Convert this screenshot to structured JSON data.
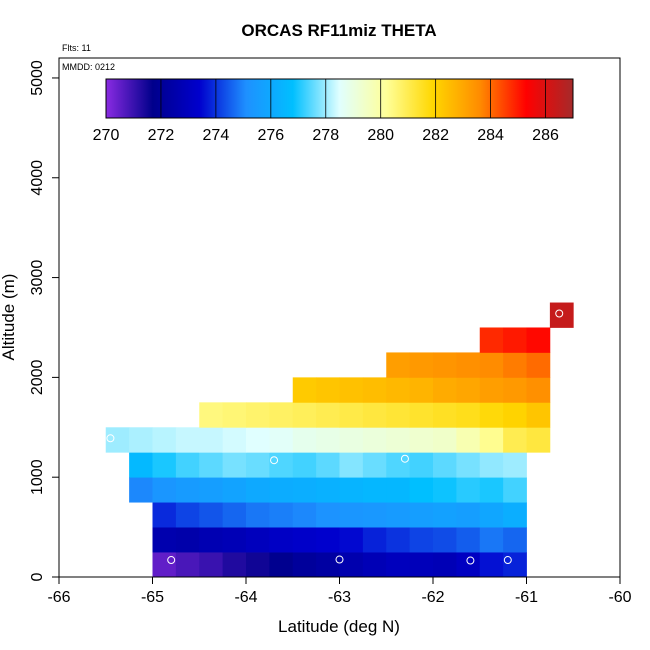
{
  "chart_data": {
    "type": "heatmap",
    "title": "ORCAS RF11miz THETA",
    "xlabel": "Latitude (deg N)",
    "ylabel": "Altitude (m)",
    "xlim": [
      -66,
      -60
    ],
    "ylim": [
      0,
      5200
    ],
    "x_ticks": [
      -66,
      -65,
      -64,
      -63,
      -62,
      -61,
      -60
    ],
    "x_tick_labels": [
      "-66",
      "-65",
      "-64",
      "-63",
      "-62",
      "-61",
      "-60"
    ],
    "y_ticks": [
      0,
      1000,
      2000,
      3000,
      4000,
      5000
    ],
    "y_tick_labels": [
      "0",
      "1000",
      "2000",
      "3000",
      "4000",
      "5000"
    ],
    "annotations": [
      "Flts: 11",
      "MMDD: 0212"
    ],
    "cell_width_deg": 0.25,
    "cell_height_m": 250,
    "colorbar": {
      "min": 270,
      "max": 287,
      "ticks": [
        270,
        272,
        274,
        276,
        278,
        280,
        282,
        284,
        286
      ],
      "tick_labels": [
        "270",
        "272",
        "274",
        "276",
        "278",
        "280",
        "282",
        "284",
        "286"
      ]
    },
    "colormap": [
      "#8a2be2",
      "#00008b",
      "#0000cd",
      "#1e90ff",
      "#00bfff",
      "#e0ffff",
      "#ffff99",
      "#ffd700",
      "#ff8c00",
      "#ff0000",
      "#a52a2a"
    ],
    "rows": [
      {
        "alt": 125,
        "lat_start": -65.0,
        "values": [
          270.5,
          270.8,
          271.0,
          271.3,
          271.5,
          271.8,
          272.1,
          272.3,
          272.6,
          272.8,
          273.0,
          272.9,
          272.8,
          273.1,
          273.6,
          273.8
        ]
      },
      {
        "alt": 375,
        "lat_start": -65.0,
        "values": [
          272.6,
          272.5,
          272.7,
          272.8,
          273.0,
          273.2,
          273.3,
          273.4,
          273.5,
          273.8,
          274.0,
          274.2,
          274.3,
          274.5,
          274.8,
          274.6
        ]
      },
      {
        "alt": 625,
        "lat_start": -65.0,
        "values": [
          273.9,
          274.2,
          274.4,
          274.6,
          274.8,
          274.9,
          275.0,
          275.2,
          275.3,
          275.4,
          275.5,
          275.6,
          275.7,
          275.6,
          275.9,
          276.2
        ]
      },
      {
        "alt": 875,
        "lat_start": -65.25,
        "values": [
          275.0,
          275.3,
          275.5,
          275.6,
          275.8,
          276.0,
          276.1,
          276.2,
          276.3,
          276.4,
          276.5,
          276.5,
          276.8,
          276.9,
          277.1,
          277.0,
          277.3
        ]
      },
      {
        "alt": 1125,
        "lat_start": -65.25,
        "values": [
          276.6,
          277.0,
          277.3,
          277.5,
          277.7,
          277.6,
          277.4,
          277.3,
          277.5,
          277.8,
          277.6,
          277.4,
          277.3,
          277.5,
          277.7,
          277.9,
          278.0
        ]
      },
      {
        "alt": 1375,
        "lat_start": -65.5,
        "values": [
          278.0,
          278.1,
          278.2,
          278.3,
          278.3,
          278.4,
          278.5,
          278.6,
          278.8,
          278.9,
          279.0,
          279.1,
          279.2,
          279.3,
          279.4,
          279.8,
          280.3,
          281.0,
          281.2
        ]
      },
      {
        "alt": 1625,
        "lat_start": -64.5,
        "values": [
          280.5,
          280.6,
          280.7,
          280.8,
          280.9,
          281.0,
          281.1,
          281.2,
          281.3,
          281.4,
          281.5,
          281.6,
          281.8,
          282.0,
          282.3
        ]
      },
      {
        "alt": 1875,
        "lat_start": -63.5,
        "values": [
          282.2,
          282.3,
          282.4,
          282.5,
          282.6,
          282.7,
          282.9,
          283.0,
          283.2,
          283.3,
          283.5
        ]
      },
      {
        "alt": 2125,
        "lat_start": -62.5,
        "values": [
          283.2,
          283.3,
          283.4,
          283.5,
          283.6,
          283.8,
          284.0
        ]
      },
      {
        "alt": 2375,
        "lat_start": -61.5,
        "values": [
          284.8,
          285.0,
          285.2
        ]
      },
      {
        "alt": 2625,
        "lat_start": -60.75,
        "values": [
          286.4
        ]
      }
    ],
    "flight_points": [
      {
        "lat": -64.8,
        "alt": 170
      },
      {
        "lat": -63.0,
        "alt": 175
      },
      {
        "lat": -61.6,
        "alt": 165
      },
      {
        "lat": -61.2,
        "alt": 170
      },
      {
        "lat": -65.45,
        "alt": 1390
      },
      {
        "lat": -63.7,
        "alt": 1170
      },
      {
        "lat": -62.3,
        "alt": 1185
      },
      {
        "lat": -60.65,
        "alt": 2640
      }
    ]
  }
}
